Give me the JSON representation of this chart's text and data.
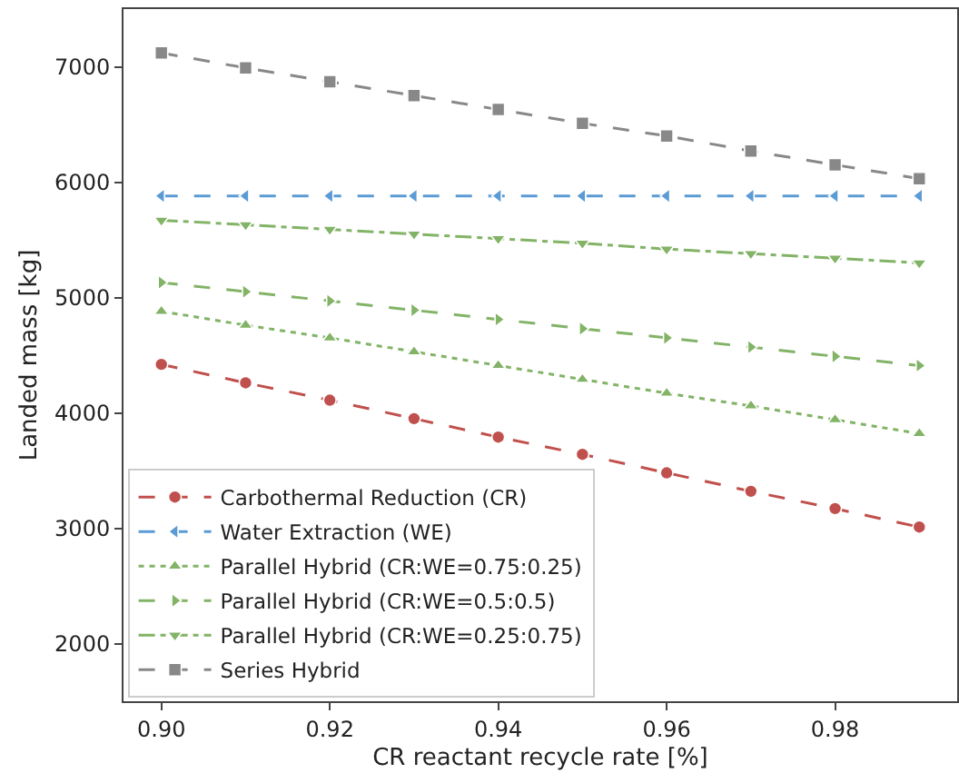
{
  "chart_data": {
    "type": "line",
    "xlabel": "CR reactant recycle rate [%]",
    "ylabel": "Landed mass [kg]",
    "x": [
      0.9,
      0.91,
      0.92,
      0.93,
      0.94,
      0.95,
      0.96,
      0.97,
      0.98,
      0.99
    ],
    "xlim": [
      0.8955,
      0.9945
    ],
    "xticks": [
      {
        "value": 0.9,
        "label": "0.90"
      },
      0.92,
      0.94,
      0.96,
      0.98
    ],
    "ylim": [
      1500,
      7500
    ],
    "yticks": [
      2000,
      3000,
      4000,
      5000,
      6000,
      7000
    ],
    "legend": "bottom left",
    "series": [
      {
        "name": "Carbothermal Reduction (CR)",
        "color": "#c0504d",
        "marker": "circle",
        "line_style": "dashed",
        "values": [
          4420,
          4260,
          4110,
          3950,
          3790,
          3640,
          3480,
          3320,
          3170,
          3010
        ]
      },
      {
        "name": "Water Extraction (WE)",
        "color": "#5b9bd5",
        "marker": "triangle-left",
        "line_style": "dashed",
        "values": [
          5880,
          5880,
          5880,
          5880,
          5880,
          5880,
          5880,
          5880,
          5880,
          5880
        ]
      },
      {
        "name": "Parallel Hybrid (CR:WE=0.75:0.25)",
        "color": "#82b366",
        "marker": "triangle",
        "line_style": "dotted",
        "values": [
          4880,
          4760,
          4650,
          4530,
          4410,
          4290,
          4170,
          4060,
          3940,
          3820
        ]
      },
      {
        "name": "Parallel Hybrid (CR:WE=0.5:0.5)",
        "color": "#82b366",
        "marker": "triangle-right",
        "line_style": "dashed",
        "values": [
          5130,
          5050,
          4970,
          4890,
          4810,
          4730,
          4650,
          4570,
          4490,
          4410
        ]
      },
      {
        "name": "Parallel Hybrid (CR:WE=0.25:0.75)",
        "color": "#82b366",
        "marker": "triangle-down",
        "line_style": "dashdot",
        "values": [
          5670,
          5630,
          5590,
          5550,
          5510,
          5470,
          5420,
          5380,
          5340,
          5300
        ]
      },
      {
        "name": "Series Hybrid",
        "color": "#888888",
        "marker": "square",
        "line_style": "dashed",
        "values": [
          7120,
          6990,
          6870,
          6750,
          6630,
          6510,
          6400,
          6270,
          6150,
          6030
        ]
      }
    ]
  }
}
